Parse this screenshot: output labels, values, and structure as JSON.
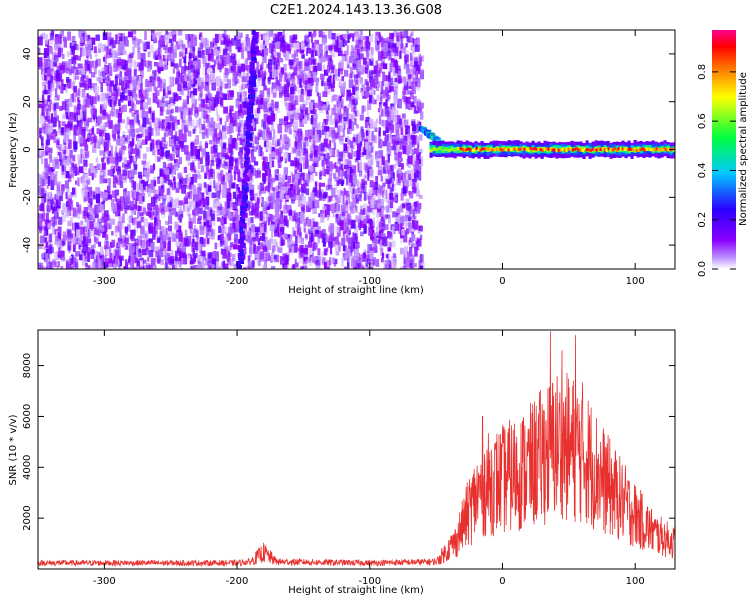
{
  "title": "C2E1.2024.143.13.36.G08",
  "chart_data": [
    {
      "type": "heatmap",
      "xlabel": "Height of straight line (km)",
      "ylabel": "Frequency (Hz)",
      "xlim": [
        -350,
        130
      ],
      "ylim": [
        -50,
        50
      ],
      "xticks": [
        -300,
        -200,
        -100,
        0,
        100
      ],
      "yticks": [
        -40,
        -20,
        0,
        20,
        40
      ],
      "colorbar": {
        "label": "Normalized spectral amplitude",
        "range": [
          0,
          0.97
        ],
        "ticks": [
          "0.0",
          "0.2",
          "0.4",
          "0.6",
          "0.8"
        ],
        "colormap": [
          "#ffffff",
          "#8a00ff",
          "#0000ff",
          "#00ffff",
          "#00ff00",
          "#ffff00",
          "#ff8000",
          "#ff0000",
          "#ff0080"
        ]
      },
      "noise_region": {
        "x_range": [
          -350,
          -62
        ],
        "amplitude": 0.1
      },
      "features": [
        {
          "name": "line",
          "from": [
            -200,
            -50
          ],
          "to": [
            -188,
            50
          ],
          "amplitude": 0.2
        },
        {
          "name": "transition",
          "from": [
            -63,
            10
          ],
          "to": [
            -40,
            0
          ],
          "amplitude": 0.4
        },
        {
          "name": "central-band",
          "x_range": [
            -55,
            130
          ],
          "frequency": 0,
          "amplitude": 0.9
        }
      ],
      "grid": false
    },
    {
      "type": "line",
      "xlabel": "Height of straight line (km)",
      "ylabel": "SNR (10 * v/v)",
      "xlim": [
        -350,
        130
      ],
      "ylim": [
        0,
        9400
      ],
      "xticks": [
        -300,
        -200,
        -100,
        0,
        100
      ],
      "yticks": [
        2000,
        4000,
        6000,
        8000
      ],
      "color": "#e8312f",
      "grid": false,
      "envelope": [
        {
          "x": -350,
          "y": 250
        },
        {
          "x": -200,
          "y": 250
        },
        {
          "x": -190,
          "y": 300
        },
        {
          "x": -180,
          "y": 700
        },
        {
          "x": -170,
          "y": 300
        },
        {
          "x": -100,
          "y": 250
        },
        {
          "x": -50,
          "y": 300
        },
        {
          "x": -35,
          "y": 1200
        },
        {
          "x": -25,
          "y": 2500
        },
        {
          "x": -15,
          "y": 3500
        },
        {
          "x": 0,
          "y": 3800
        },
        {
          "x": 20,
          "y": 4300
        },
        {
          "x": 40,
          "y": 5300
        },
        {
          "x": 60,
          "y": 5000
        },
        {
          "x": 80,
          "y": 3500
        },
        {
          "x": 100,
          "y": 2300
        },
        {
          "x": 115,
          "y": 1500
        },
        {
          "x": 130,
          "y": 1100
        }
      ],
      "peaks": [
        {
          "x": 36,
          "y": 9350
        },
        {
          "x": 55,
          "y": 9200
        },
        {
          "x": -15,
          "y": 6000
        },
        {
          "x": 45,
          "y": 8600
        }
      ]
    }
  ]
}
